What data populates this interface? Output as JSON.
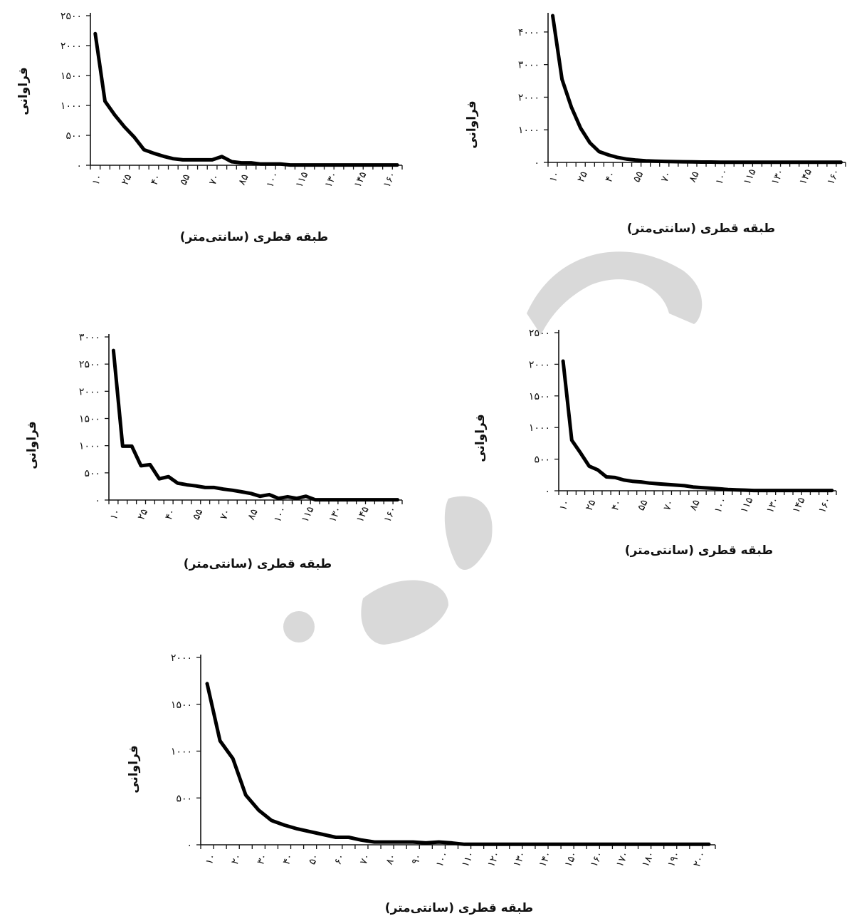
{
  "chart_data": [
    {
      "type": "line",
      "xlabel": "طبقه قطری (سانتی‌متر)",
      "ylabel": "فراوانی",
      "ylim": [
        0,
        2500
      ],
      "yticks": [
        0,
        500,
        1000,
        1500,
        2000,
        2500
      ],
      "ytick_labels": [
        "۰",
        "۵۰۰",
        "۱۰۰۰",
        "۱۵۰۰",
        "۲۰۰۰",
        "۲۵۰۰"
      ],
      "xlim": [
        5,
        165
      ],
      "xtick_values": [
        10,
        25,
        40,
        55,
        70,
        85,
        100,
        115,
        130,
        145,
        160
      ],
      "xtick_labels": [
        "۱۰",
        "۲۵",
        "۴۰",
        "۵۵",
        "۷۰",
        "۸۵",
        "۱۰۰",
        "۱۱۵",
        "۱۳۰",
        "۱۴۵",
        "۱۶۰"
      ],
      "x": [
        7.5,
        12.5,
        17.5,
        22.5,
        27.5,
        32.5,
        37.5,
        42.5,
        47.5,
        52.5,
        57.5,
        62.5,
        67.5,
        72.5,
        77.5,
        82.5,
        87.5,
        92.5,
        97.5,
        102.5,
        107.5,
        112.5,
        117.5,
        122.5,
        127.5,
        132.5,
        137.5,
        142.5,
        147.5,
        152.5,
        157.5,
        162.5
      ],
      "series": [
        {
          "values": [
            2200,
            1070,
            840,
            640,
            470,
            260,
            200,
            150,
            110,
            90,
            90,
            90,
            90,
            145,
            60,
            40,
            40,
            20,
            20,
            20,
            5,
            5,
            5,
            5,
            5,
            5,
            5,
            5,
            5,
            5,
            5,
            5
          ]
        }
      ]
    },
    {
      "type": "line",
      "xlabel": "طبقه قطری (سانتی‌متر)",
      "ylabel": "فراوانی",
      "ylim": [
        0,
        4500
      ],
      "yticks": [
        0,
        1000,
        2000,
        3000,
        4000
      ],
      "ytick_labels": [
        "۰",
        "۱۰۰۰",
        "۲۰۰۰",
        "۳۰۰۰",
        "۴۰۰۰"
      ],
      "xlim": [
        5,
        165
      ],
      "xtick_values": [
        10,
        25,
        40,
        55,
        70,
        85,
        100,
        115,
        130,
        145,
        160
      ],
      "xtick_labels": [
        "۱۰",
        "۲۵",
        "۴۰",
        "۵۵",
        "۷۰",
        "۸۵",
        "۱۰۰",
        "۱۱۵",
        "۱۳۰",
        "۱۴۵",
        "۱۶۰"
      ],
      "x": [
        7.5,
        12.5,
        17.5,
        22.5,
        27.5,
        32.5,
        37.5,
        42.5,
        47.5,
        52.5,
        57.5,
        62.5,
        67.5,
        72.5,
        77.5,
        82.5,
        87.5,
        92.5,
        97.5,
        102.5,
        107.5,
        112.5,
        117.5,
        122.5,
        127.5,
        132.5,
        137.5,
        142.5,
        147.5,
        152.5,
        157.5,
        162.5
      ],
      "series": [
        {
          "values": [
            4500,
            2550,
            1700,
            1050,
            600,
            330,
            230,
            150,
            100,
            70,
            50,
            40,
            30,
            25,
            20,
            15,
            10,
            10,
            5,
            5,
            5,
            5,
            5,
            5,
            5,
            5,
            5,
            5,
            5,
            5,
            5,
            5
          ]
        }
      ]
    },
    {
      "type": "line",
      "xlabel": "طبقه قطری (سانتی‌متر)",
      "ylabel": "فراوانی",
      "ylim": [
        0,
        3000
      ],
      "yticks": [
        0,
        500,
        1000,
        1500,
        2000,
        2500,
        3000
      ],
      "ytick_labels": [
        "۰",
        "۵۰۰",
        "۱۰۰۰",
        "۱۵۰۰",
        "۲۰۰۰",
        "۲۵۰۰",
        "۳۰۰۰"
      ],
      "xlim": [
        5,
        165
      ],
      "xtick_values": [
        10,
        25,
        40,
        55,
        70,
        85,
        100,
        115,
        130,
        145,
        160
      ],
      "xtick_labels": [
        "۱۰",
        "۲۵",
        "۴۰",
        "۵۵",
        "۷۰",
        "۸۵",
        "۱۰۰",
        "۱۱۵",
        "۱۳۰",
        "۱۴۵",
        "۱۶۰"
      ],
      "x": [
        7.5,
        12.5,
        17.5,
        22.5,
        27.5,
        32.5,
        37.5,
        42.5,
        47.5,
        52.5,
        57.5,
        62.5,
        67.5,
        72.5,
        77.5,
        82.5,
        87.5,
        92.5,
        97.5,
        102.5,
        107.5,
        112.5,
        117.5,
        122.5,
        127.5,
        132.5,
        137.5,
        142.5,
        147.5,
        152.5,
        157.5,
        162.5
      ],
      "series": [
        {
          "values": [
            2750,
            990,
            990,
            630,
            650,
            390,
            430,
            310,
            280,
            260,
            230,
            230,
            200,
            180,
            150,
            120,
            70,
            100,
            30,
            60,
            30,
            70,
            5,
            5,
            5,
            5,
            5,
            5,
            5,
            5,
            5,
            5
          ]
        }
      ]
    },
    {
      "type": "line",
      "xlabel": "طبقه قطری (سانتی‌متر)",
      "ylabel": "فراوانی",
      "ylim": [
        0,
        2500
      ],
      "yticks": [
        0,
        500,
        1000,
        1500,
        2000,
        2500
      ],
      "ytick_labels": [
        "۰",
        "۵۰۰",
        "۱۰۰۰",
        "۱۵۰۰",
        "۲۰۰۰",
        "۲۵۰۰"
      ],
      "xlim": [
        5,
        165
      ],
      "xtick_values": [
        10,
        25,
        40,
        55,
        70,
        85,
        100,
        115,
        130,
        145,
        160
      ],
      "xtick_labels": [
        "۱۰",
        "۲۵",
        "۴۰",
        "۵۵",
        "۷۰",
        "۸۵",
        "۱۰۰",
        "۱۱۵",
        "۱۳۰",
        "۱۴۵",
        "۱۶۰"
      ],
      "x": [
        7.5,
        12.5,
        17.5,
        22.5,
        27.5,
        32.5,
        37.5,
        42.5,
        47.5,
        52.5,
        57.5,
        62.5,
        67.5,
        72.5,
        77.5,
        82.5,
        87.5,
        92.5,
        97.5,
        102.5,
        107.5,
        112.5,
        117.5,
        122.5,
        127.5,
        132.5,
        137.5,
        142.5,
        147.5,
        152.5,
        157.5,
        162.5
      ],
      "series": [
        {
          "values": [
            2050,
            800,
            600,
            390,
            330,
            220,
            210,
            170,
            150,
            140,
            120,
            110,
            100,
            90,
            80,
            60,
            50,
            40,
            30,
            20,
            15,
            10,
            5,
            5,
            5,
            5,
            5,
            5,
            5,
            5,
            5,
            5
          ]
        }
      ]
    },
    {
      "type": "line",
      "xlabel": "طبقه قطری (سانتی‌متر)",
      "ylabel": "فراوانی",
      "ylim": [
        0,
        2000
      ],
      "yticks": [
        0,
        500,
        1000,
        1500,
        2000
      ],
      "ytick_labels": [
        "۰",
        "۵۰۰",
        "۱۰۰۰",
        "۱۵۰۰",
        "۲۰۰۰"
      ],
      "xlim": [
        5,
        205
      ],
      "xtick_values": [
        10,
        20,
        30,
        40,
        50,
        60,
        70,
        80,
        90,
        100,
        110,
        120,
        130,
        140,
        150,
        160,
        170,
        180,
        190,
        200
      ],
      "xtick_labels": [
        "۱۰",
        "۲۰",
        "۳۰",
        "۴۰",
        "۵۰",
        "۶۰",
        "۷۰",
        "۸۰",
        "۹۰",
        "۱۰۰",
        "۱۱۰",
        "۱۲۰",
        "۱۳۰",
        "۱۴۰",
        "۱۵۰",
        "۱۶۰",
        "۱۷۰",
        "۱۸۰",
        "۱۹۰",
        "۲۰۰"
      ],
      "x": [
        7.5,
        12.5,
        17.5,
        22.5,
        27.5,
        32.5,
        37.5,
        42.5,
        47.5,
        52.5,
        57.5,
        62.5,
        67.5,
        72.5,
        77.5,
        82.5,
        87.5,
        92.5,
        97.5,
        102.5,
        107.5,
        112.5,
        117.5,
        122.5,
        127.5,
        132.5,
        137.5,
        142.5,
        147.5,
        152.5,
        157.5,
        162.5,
        167.5,
        172.5,
        177.5,
        182.5,
        187.5,
        192.5,
        197.5,
        202.5
      ],
      "series": [
        {
          "values": [
            1720,
            1110,
            920,
            530,
            370,
            260,
            210,
            170,
            140,
            110,
            80,
            80,
            50,
            30,
            30,
            30,
            30,
            20,
            30,
            20,
            5,
            5,
            5,
            5,
            5,
            5,
            5,
            5,
            5,
            5,
            5,
            5,
            5,
            5,
            5,
            5,
            5,
            5,
            5,
            5
          ]
        }
      ]
    }
  ]
}
